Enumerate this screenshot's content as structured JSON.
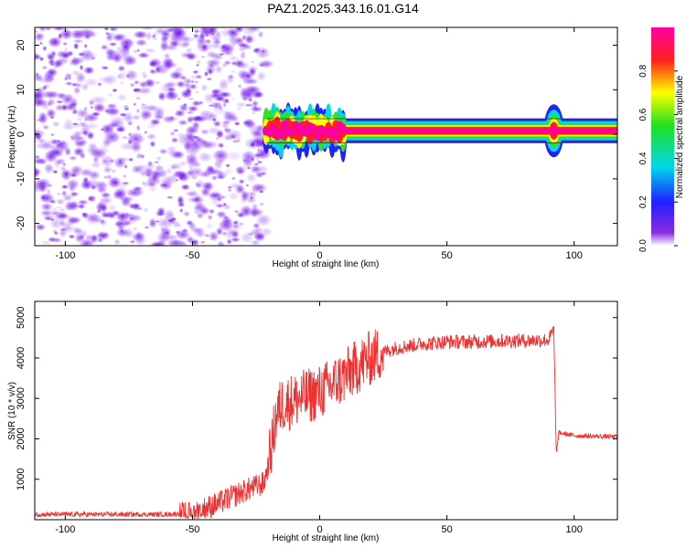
{
  "title": "PAZ1.2025.343.16.01.G14",
  "chart_data": [
    {
      "type": "heatmap",
      "xlabel": "Height of straight line (km)",
      "ylabel": "Frequency (Hz)",
      "xlim": [
        -112,
        117
      ],
      "ylim": [
        -25,
        24
      ],
      "xticks": [
        -100,
        -50,
        0,
        50,
        100
      ],
      "yticks": [
        -20,
        -10,
        0,
        10,
        20
      ],
      "noise_region": {
        "x_range": [
          -112,
          -21
        ],
        "frequency_range": [
          -25,
          24
        ]
      },
      "signal_band": {
        "x_range": [
          -21,
          117
        ],
        "center_frequency": 0.8,
        "half_width": 0.9,
        "disturbance_x_range": [
          -21,
          10
        ],
        "spike_x": 92
      },
      "colorbar": {
        "label": "Normalized spectral amplitude",
        "range": [
          0.0,
          1.0
        ],
        "ticks": [
          0.0,
          0.2,
          0.4,
          0.6,
          0.8
        ],
        "tick_labels": [
          "0.0",
          "0.2",
          "0.4",
          "0.6",
          "0.8"
        ]
      }
    },
    {
      "type": "line",
      "xlabel": "Height of straight line (km)",
      "ylabel": "SNR (10 * v/v)",
      "xlim": [
        -112,
        117
      ],
      "ylim": [
        0,
        5400
      ],
      "xticks": [
        -100,
        -50,
        0,
        50,
        100
      ],
      "yticks": [
        1000,
        2000,
        3000,
        4000,
        5000
      ],
      "series": [
        {
          "name": "SNR",
          "color": "#ee3030",
          "x": [
            -112,
            -60,
            -50,
            -40,
            -30,
            -22,
            -20,
            -17,
            -15,
            -10,
            -5,
            0,
            5,
            10,
            15,
            20,
            25,
            30,
            40,
            50,
            60,
            70,
            80,
            90,
            92,
            93,
            94,
            100,
            110,
            117
          ],
          "values": [
            130,
            130,
            170,
            400,
            700,
            900,
            1400,
            2600,
            2850,
            2950,
            3050,
            3150,
            3350,
            3550,
            3800,
            4000,
            4150,
            4250,
            4350,
            4400,
            4400,
            4420,
            4430,
            4450,
            4700,
            1600,
            2150,
            2080,
            2060,
            2050
          ]
        }
      ]
    }
  ]
}
